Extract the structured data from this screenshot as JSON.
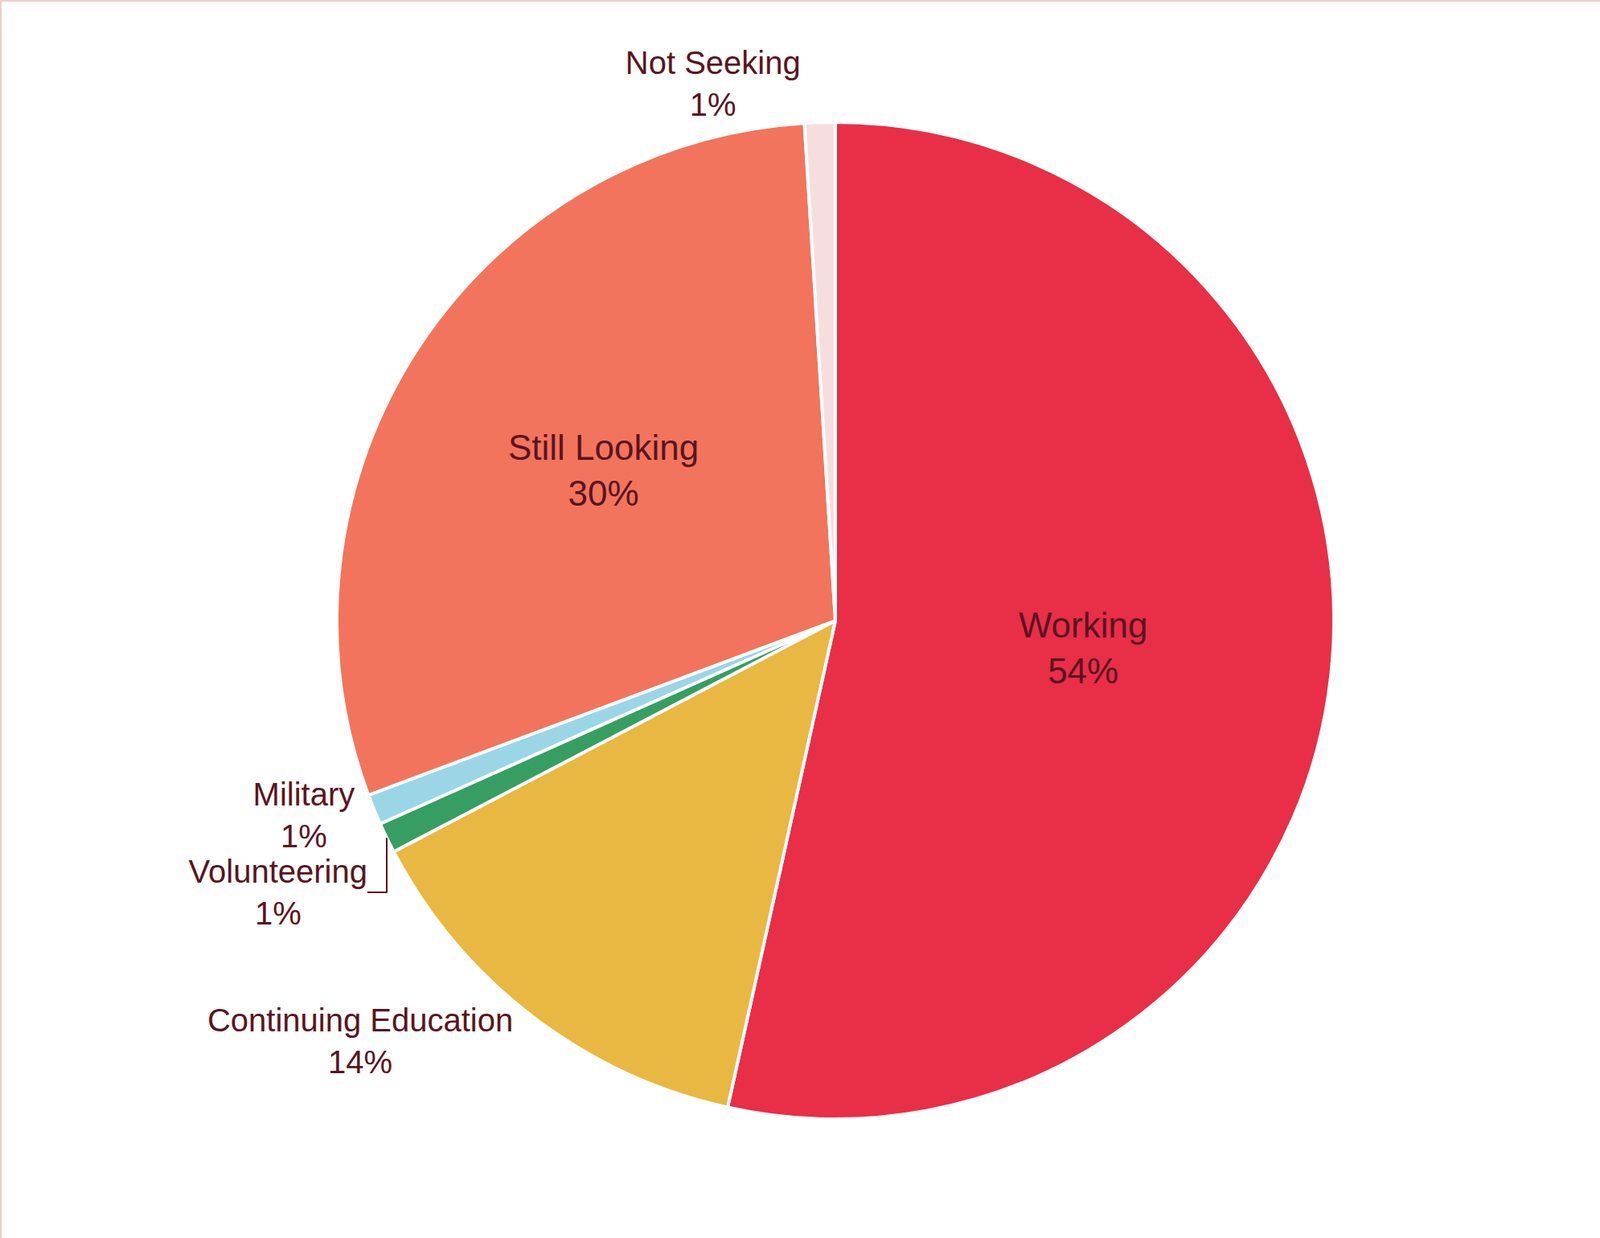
{
  "chart_data": {
    "type": "pie",
    "categories": [
      "Working",
      "Continuing Education",
      "Volunteering",
      "Military",
      "Still Looking",
      "Not Seeking"
    ],
    "values": [
      54,
      14,
      1,
      1,
      30,
      1
    ],
    "value_labels": [
      "54%",
      "14%",
      "1%",
      "1%",
      "30%",
      "1%"
    ],
    "colors": [
      "#e92e48",
      "#e9b843",
      "#379e63",
      "#9bd6e6",
      "#f2745d",
      "#f7dede"
    ],
    "data_labels": true
  }
}
